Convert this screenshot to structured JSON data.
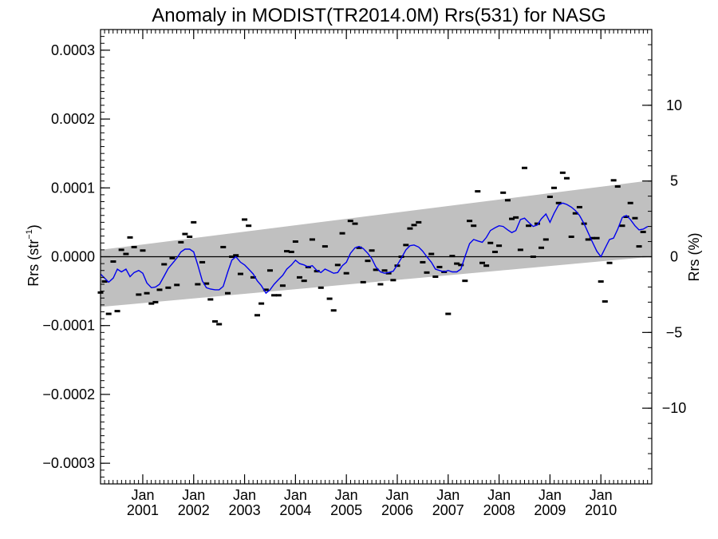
{
  "chart_data": {
    "type": "scatter",
    "title": "Anomaly in MODIST(TR2014.0M) Rrs(531) for NASG",
    "ylabel": "Rrs (str",
    "ylabel_sup": "−1",
    "ylabel_close": ")",
    "y2label": "Rrs (%)",
    "x_range": [
      2000.17,
      2011.0
    ],
    "ylim": [
      -0.00033,
      0.00033
    ],
    "y2lim": [
      -15,
      15
    ],
    "y_ticks": [
      {
        "value": 0.0003,
        "label": "0.0003"
      },
      {
        "value": 0.0002,
        "label": "0.0002"
      },
      {
        "value": 0.0001,
        "label": "0.0001"
      },
      {
        "value": 0.0,
        "label": "0.0000"
      },
      {
        "value": -0.0001,
        "label": "−0.0001"
      },
      {
        "value": -0.0002,
        "label": "−0.0002"
      },
      {
        "value": -0.0003,
        "label": "−0.0003"
      }
    ],
    "y2_ticks": [
      {
        "value": 10,
        "label": "10"
      },
      {
        "value": 5,
        "label": "5"
      },
      {
        "value": 0,
        "label": "0"
      },
      {
        "value": -5,
        "label": "−5"
      },
      {
        "value": -10,
        "label": "−10"
      }
    ],
    "x_ticks": [
      {
        "value": 2001.0,
        "month": "Jan",
        "year": "2001"
      },
      {
        "value": 2002.0,
        "month": "Jan",
        "year": "2002"
      },
      {
        "value": 2003.0,
        "month": "Jan",
        "year": "2003"
      },
      {
        "value": 2004.0,
        "month": "Jan",
        "year": "2004"
      },
      {
        "value": 2005.0,
        "month": "Jan",
        "year": "2005"
      },
      {
        "value": 2006.0,
        "month": "Jan",
        "year": "2006"
      },
      {
        "value": 2007.0,
        "month": "Jan",
        "year": "2007"
      },
      {
        "value": 2008.0,
        "month": "Jan",
        "year": "2008"
      },
      {
        "value": 2009.0,
        "month": "Jan",
        "year": "2009"
      },
      {
        "value": 2010.0,
        "month": "Jan",
        "year": "2010"
      }
    ],
    "trend_band": {
      "upper": [
        [
          2000.17,
          1e-05
        ],
        [
          2011.0,
          0.000111
        ]
      ],
      "lower": [
        [
          2000.17,
          -7.3e-05
        ],
        [
          2011.0,
          0.0
        ]
      ]
    },
    "zero_line": 0,
    "monthly_anomalies": [
      [
        2000.17,
        -5.2e-05
      ],
      [
        2000.25,
        -3.6e-05
      ],
      [
        2000.33,
        -8.3e-05
      ],
      [
        2000.42,
        -7e-06
      ],
      [
        2000.5,
        -7.9e-05
      ],
      [
        2000.58,
        1e-05
      ],
      [
        2000.67,
        4e-06
      ],
      [
        2000.75,
        2.8e-05
      ],
      [
        2000.83,
        1.4e-05
      ],
      [
        2000.92,
        -5.5e-05
      ],
      [
        2001.0,
        9e-06
      ],
      [
        2001.08,
        -5.3e-05
      ],
      [
        2001.17,
        -6.8e-05
      ],
      [
        2001.25,
        -6.6e-05
      ],
      [
        2001.33,
        -4.8e-05
      ],
      [
        2001.42,
        -1.1e-05
      ],
      [
        2001.5,
        -4.5e-05
      ],
      [
        2001.58,
        -2e-06
      ],
      [
        2001.67,
        -4.1e-05
      ],
      [
        2001.75,
        2.1e-05
      ],
      [
        2001.83,
        3.3e-05
      ],
      [
        2001.92,
        2.9e-05
      ],
      [
        2002.0,
        5e-05
      ],
      [
        2002.08,
        -4e-05
      ],
      [
        2002.17,
        -8e-06
      ],
      [
        2002.25,
        -3.9e-05
      ],
      [
        2002.33,
        -6.2e-05
      ],
      [
        2002.42,
        -9.4e-05
      ],
      [
        2002.5,
        -9.8e-05
      ],
      [
        2002.58,
        1.4e-05
      ],
      [
        2002.67,
        -5.3e-05
      ],
      [
        2002.75,
        0.0
      ],
      [
        2002.83,
        2e-06
      ],
      [
        2002.92,
        -2.5e-05
      ],
      [
        2003.0,
        5.4e-05
      ],
      [
        2003.08,
        4.5e-05
      ],
      [
        2003.17,
        -3e-05
      ],
      [
        2003.25,
        -8.5e-05
      ],
      [
        2003.33,
        -6.8e-05
      ],
      [
        2003.42,
        -4.8e-05
      ],
      [
        2003.5,
        -2e-05
      ],
      [
        2003.58,
        -5.6e-05
      ],
      [
        2003.67,
        -5.6e-05
      ],
      [
        2003.75,
        -4.2e-05
      ],
      [
        2003.83,
        8e-06
      ],
      [
        2003.92,
        7e-06
      ],
      [
        2004.0,
        2.2e-05
      ],
      [
        2004.08,
        -3e-05
      ],
      [
        2004.17,
        -3.5e-05
      ],
      [
        2004.25,
        -1.5e-05
      ],
      [
        2004.33,
        2.5e-05
      ],
      [
        2004.42,
        -2.1e-05
      ],
      [
        2004.5,
        -4.5e-05
      ],
      [
        2004.58,
        1.5e-05
      ],
      [
        2004.67,
        -6.1e-05
      ],
      [
        2004.75,
        -7.8e-05
      ],
      [
        2004.83,
        -1.2e-05
      ],
      [
        2004.92,
        3.4e-05
      ],
      [
        2005.0,
        -2.4e-05
      ],
      [
        2005.08,
        5.2e-05
      ],
      [
        2005.17,
        4.8e-05
      ],
      [
        2005.25,
        1.3e-05
      ],
      [
        2005.33,
        -3.7e-05
      ],
      [
        2005.42,
        -6e-06
      ],
      [
        2005.5,
        9e-06
      ],
      [
        2005.58,
        -1.9e-05
      ],
      [
        2005.67,
        -4e-05
      ],
      [
        2005.75,
        -2e-05
      ],
      [
        2005.83,
        -2.4e-05
      ],
      [
        2005.92,
        -3.4e-05
      ],
      [
        2006.0,
        -1.3e-05
      ],
      [
        2006.08,
        0.0
      ],
      [
        2006.17,
        1.7e-05
      ],
      [
        2006.25,
        4.1e-05
      ],
      [
        2006.33,
        4.6e-05
      ],
      [
        2006.42,
        5e-05
      ],
      [
        2006.5,
        -8e-06
      ],
      [
        2006.58,
        -2.3e-05
      ],
      [
        2006.67,
        4e-06
      ],
      [
        2006.75,
        -2.9e-05
      ],
      [
        2006.83,
        -1.5e-05
      ],
      [
        2006.92,
        -2.2e-05
      ],
      [
        2007.0,
        -8.3e-05
      ],
      [
        2007.08,
        1e-06
      ],
      [
        2007.17,
        -1e-05
      ],
      [
        2007.25,
        -1.2e-05
      ],
      [
        2007.33,
        -3.5e-05
      ],
      [
        2007.42,
        5.2e-05
      ],
      [
        2007.5,
        4.5e-05
      ],
      [
        2007.58,
        9.5e-05
      ],
      [
        2007.67,
        -9e-06
      ],
      [
        2007.75,
        -1.3e-05
      ],
      [
        2007.83,
        2e-05
      ],
      [
        2007.92,
        7e-06
      ],
      [
        2008.0,
        1.6e-05
      ],
      [
        2008.08,
        9.3e-05
      ],
      [
        2008.17,
        8.2e-05
      ],
      [
        2008.25,
        5.5e-05
      ],
      [
        2008.33,
        5.7e-05
      ],
      [
        2008.42,
        1e-05
      ],
      [
        2008.5,
        0.000129
      ],
      [
        2008.58,
        4.5e-05
      ],
      [
        2008.67,
        0.0
      ],
      [
        2008.75,
        4.8e-05
      ],
      [
        2008.83,
        1.3e-05
      ],
      [
        2008.92,
        2.5e-05
      ],
      [
        2009.0,
        8.7e-05
      ],
      [
        2009.08,
        0.0001
      ],
      [
        2009.17,
        7.8e-05
      ],
      [
        2009.25,
        0.000122
      ],
      [
        2009.33,
        0.000114
      ],
      [
        2009.42,
        2.9e-05
      ],
      [
        2009.5,
        6.3e-05
      ],
      [
        2009.58,
        7.2e-05
      ],
      [
        2009.67,
        4.8e-05
      ],
      [
        2009.75,
        2.5e-05
      ],
      [
        2009.83,
        2.7e-05
      ],
      [
        2009.92,
        2.7e-05
      ],
      [
        2010.0,
        -3.6e-05
      ],
      [
        2010.08,
        -6.5e-05
      ],
      [
        2010.17,
        -9e-06
      ],
      [
        2010.25,
        0.000111
      ],
      [
        2010.33,
        0.000102
      ],
      [
        2010.42,
        4.5e-05
      ],
      [
        2010.5,
        5.8e-05
      ],
      [
        2010.58,
        7.8e-05
      ],
      [
        2010.67,
        5.6e-05
      ],
      [
        2010.75,
        1.5e-05
      ],
      [
        2010.83,
        3.6e-05
      ]
    ],
    "running_mean": [
      [
        2000.17,
        -2.5e-05
      ],
      [
        2000.25,
        -3.1e-05
      ],
      [
        2000.33,
        -3.7e-05
      ],
      [
        2000.42,
        -3.1e-05
      ],
      [
        2000.5,
        -1.8e-05
      ],
      [
        2000.58,
        -2.2e-05
      ],
      [
        2000.67,
        -1.8e-05
      ],
      [
        2000.75,
        -2.9e-05
      ],
      [
        2000.83,
        -2.3e-05
      ],
      [
        2000.92,
        -2e-05
      ],
      [
        2001.0,
        -2.4e-05
      ],
      [
        2001.08,
        -3.8e-05
      ],
      [
        2001.17,
        -4.5e-05
      ],
      [
        2001.25,
        -4.4e-05
      ],
      [
        2001.33,
        -4e-05
      ],
      [
        2001.42,
        -2.8e-05
      ],
      [
        2001.5,
        -1.7e-05
      ],
      [
        2001.58,
        -1e-05
      ],
      [
        2001.67,
        -2e-06
      ],
      [
        2001.75,
        7e-06
      ],
      [
        2001.83,
        1.1e-05
      ],
      [
        2001.92,
        1.1e-05
      ],
      [
        2002.0,
        7e-06
      ],
      [
        2002.08,
        -1.2e-05
      ],
      [
        2002.17,
        -3.5e-05
      ],
      [
        2002.25,
        -4.5e-05
      ],
      [
        2002.33,
        -4.7e-05
      ],
      [
        2002.42,
        -4.8e-05
      ],
      [
        2002.5,
        -4.8e-05
      ],
      [
        2002.58,
        -4.3e-05
      ],
      [
        2002.67,
        -2.2e-05
      ],
      [
        2002.75,
        -5e-06
      ],
      [
        2002.83,
        0.0
      ],
      [
        2002.92,
        -8e-06
      ],
      [
        2003.0,
        -1.2e-05
      ],
      [
        2003.08,
        -1.8e-05
      ],
      [
        2003.17,
        -2.5e-05
      ],
      [
        2003.25,
        -3.5e-05
      ],
      [
        2003.33,
        -4.2e-05
      ],
      [
        2003.42,
        -5.3e-05
      ],
      [
        2003.5,
        -4.8e-05
      ],
      [
        2003.58,
        -4e-05
      ],
      [
        2003.67,
        -3.3e-05
      ],
      [
        2003.75,
        -2.7e-05
      ],
      [
        2003.83,
        -1.8e-05
      ],
      [
        2003.92,
        -1.2e-05
      ],
      [
        2004.0,
        -5e-06
      ],
      [
        2004.08,
        -1e-05
      ],
      [
        2004.17,
        -1.2e-05
      ],
      [
        2004.25,
        -1.5e-05
      ],
      [
        2004.33,
        -1.3e-05
      ],
      [
        2004.42,
        -2e-05
      ],
      [
        2004.5,
        -2.3e-05
      ],
      [
        2004.58,
        -1.8e-05
      ],
      [
        2004.67,
        -2.1e-05
      ],
      [
        2004.75,
        -2.4e-05
      ],
      [
        2004.83,
        -2.3e-05
      ],
      [
        2004.92,
        -1.3e-05
      ],
      [
        2005.0,
        -8e-06
      ],
      [
        2005.08,
        5e-06
      ],
      [
        2005.17,
        1.3e-05
      ],
      [
        2005.25,
        1.5e-05
      ],
      [
        2005.33,
        1.2e-05
      ],
      [
        2005.42,
        5e-06
      ],
      [
        2005.5,
        -3e-06
      ],
      [
        2005.58,
        -1.5e-05
      ],
      [
        2005.67,
        -2.2e-05
      ],
      [
        2005.75,
        -2.4e-05
      ],
      [
        2005.83,
        -2.3e-05
      ],
      [
        2005.92,
        -2.1e-05
      ],
      [
        2006.0,
        -1.2e-05
      ],
      [
        2006.08,
        -2e-06
      ],
      [
        2006.17,
        1e-05
      ],
      [
        2006.25,
        1.6e-05
      ],
      [
        2006.33,
        1.7e-05
      ],
      [
        2006.42,
        1.4e-05
      ],
      [
        2006.5,
        8e-06
      ],
      [
        2006.58,
        0.0
      ],
      [
        2006.67,
        -8e-06
      ],
      [
        2006.75,
        -1.8e-05
      ],
      [
        2006.83,
        -2e-05
      ],
      [
        2006.92,
        -2.2e-05
      ],
      [
        2007.0,
        -2e-05
      ],
      [
        2007.08,
        -2.2e-05
      ],
      [
        2007.17,
        -2.2e-05
      ],
      [
        2007.25,
        -1.8e-05
      ],
      [
        2007.33,
        0.0
      ],
      [
        2007.42,
        1.9e-05
      ],
      [
        2007.5,
        2.5e-05
      ],
      [
        2007.58,
        2.3e-05
      ],
      [
        2007.67,
        2.1e-05
      ],
      [
        2007.75,
        2.8e-05
      ],
      [
        2007.83,
        3.8e-05
      ],
      [
        2007.92,
        4.2e-05
      ],
      [
        2008.0,
        4.5e-05
      ],
      [
        2008.08,
        4.4e-05
      ],
      [
        2008.17,
        3.9e-05
      ],
      [
        2008.25,
        3.5e-05
      ],
      [
        2008.33,
        3.8e-05
      ],
      [
        2008.42,
        5.4e-05
      ],
      [
        2008.5,
        5.6e-05
      ],
      [
        2008.58,
        5e-05
      ],
      [
        2008.67,
        4.4e-05
      ],
      [
        2008.75,
        4.6e-05
      ],
      [
        2008.83,
        5.5e-05
      ],
      [
        2008.92,
        6.2e-05
      ],
      [
        2009.0,
        5e-05
      ],
      [
        2009.08,
        6.3e-05
      ],
      [
        2009.17,
        7.5e-05
      ],
      [
        2009.25,
        7.8e-05
      ],
      [
        2009.33,
        7.6e-05
      ],
      [
        2009.42,
        7.2e-05
      ],
      [
        2009.5,
        6.7e-05
      ],
      [
        2009.58,
        6e-05
      ],
      [
        2009.67,
        4.8e-05
      ],
      [
        2009.75,
        3.5e-05
      ],
      [
        2009.83,
        2.2e-05
      ],
      [
        2009.92,
        8e-06
      ],
      [
        2010.0,
        0.0
      ],
      [
        2010.08,
        1.2e-05
      ],
      [
        2010.17,
        2.5e-05
      ],
      [
        2010.25,
        2.7e-05
      ],
      [
        2010.33,
        4e-05
      ],
      [
        2010.42,
        5.7e-05
      ],
      [
        2010.5,
        6e-05
      ],
      [
        2010.58,
        5.4e-05
      ],
      [
        2010.67,
        4.5e-05
      ],
      [
        2010.75,
        3.9e-05
      ],
      [
        2010.83,
        4e-05
      ],
      [
        2010.92,
        4.4e-05
      ]
    ],
    "colors": {
      "band": "#c0c0c0",
      "running_mean": "#0000ee",
      "points": "#000000",
      "axes": "#000000"
    }
  }
}
